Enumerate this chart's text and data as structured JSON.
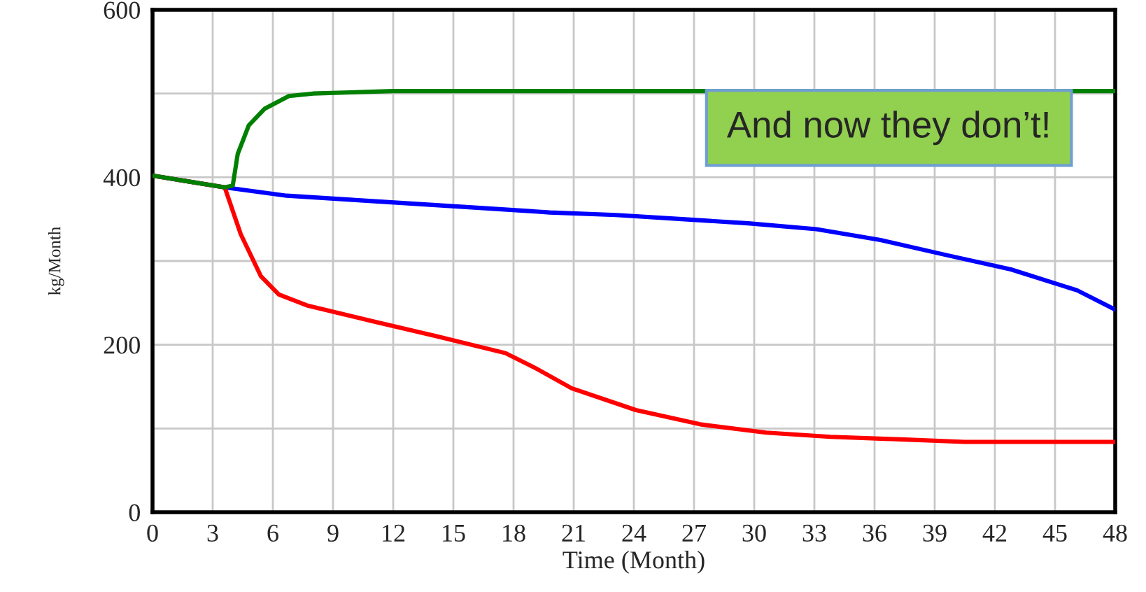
{
  "chart_data": {
    "type": "line",
    "xlabel": "Time (Month)",
    "ylabel": "kg/Month",
    "xlim": [
      0,
      48
    ],
    "xticks": [
      0,
      3,
      6,
      9,
      12,
      15,
      18,
      21,
      24,
      27,
      30,
      33,
      36,
      39,
      42,
      45,
      48
    ],
    "ylim": [
      0,
      600
    ],
    "yticks": [
      0,
      {
        "value": 100,
        "label": null
      },
      200,
      {
        "value": 300,
        "label": null
      },
      400,
      {
        "value": 500,
        "label": null
      },
      600
    ],
    "grid": true,
    "annotations": [
      "And now they don’t!"
    ],
    "series": [
      {
        "color": "#0000ff",
        "x": [
          0,
          3.6,
          6.7,
          10,
          13.3,
          16.6,
          19.8,
          23.1,
          26.4,
          29.7,
          33.1,
          36.3,
          39.6,
          42.8,
          46.1,
          48
        ],
        "values": [
          402,
          388,
          378,
          373,
          368,
          363,
          358,
          355,
          350,
          345,
          338,
          325,
          307,
          290,
          265,
          242
        ]
      },
      {
        "color": "#ff0000",
        "x": [
          0,
          3.6,
          4.4,
          5.4,
          6.3,
          7.7,
          11,
          14.2,
          17.6,
          19.1,
          20.9,
          24.1,
          27.3,
          30.6,
          33.8,
          37.3,
          40.5,
          48
        ],
        "values": [
          402,
          388,
          332,
          282,
          260,
          247,
          228,
          210,
          190,
          172,
          148,
          122,
          105,
          95,
          90,
          87,
          84,
          84
        ]
      },
      {
        "color": "#008000",
        "x": [
          0,
          3.6,
          4.0,
          4.25,
          4.8,
          5.6,
          6.8,
          8,
          12,
          48
        ],
        "values": [
          402,
          388,
          390,
          428,
          462,
          482,
          497,
          500,
          503,
          503
        ]
      }
    ]
  }
}
